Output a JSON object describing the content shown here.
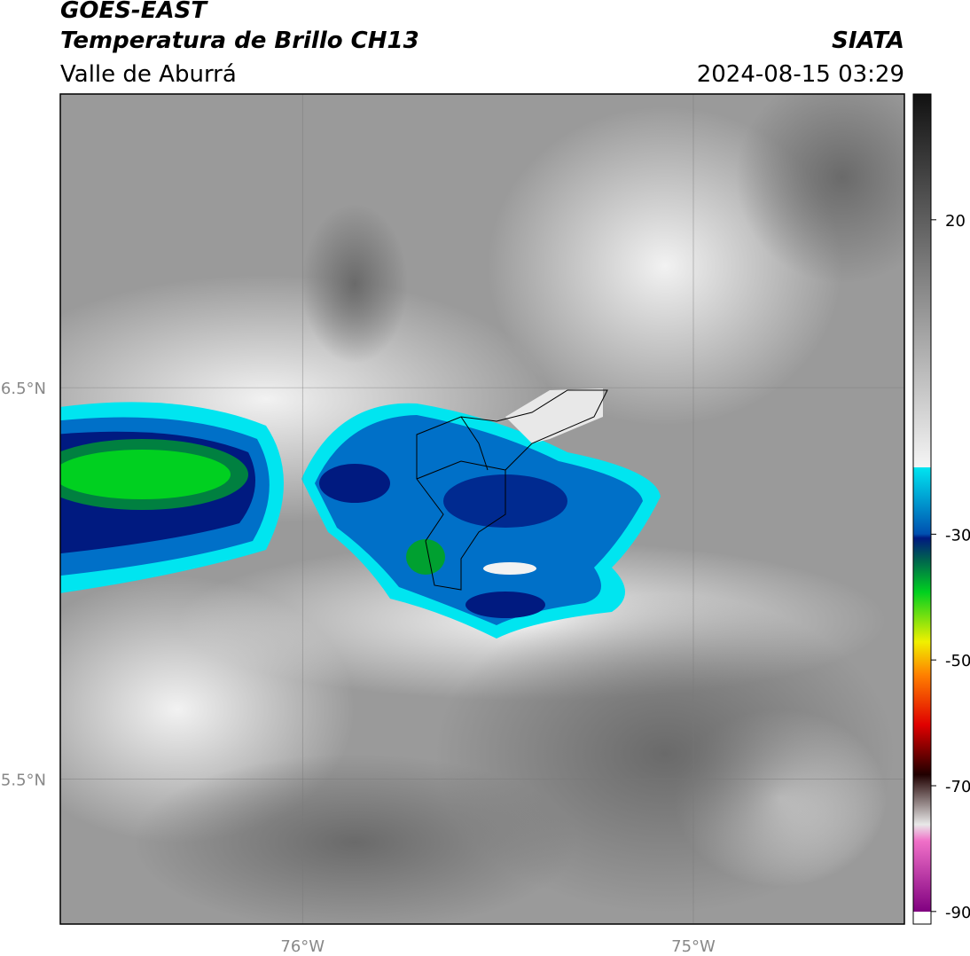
{
  "header": {
    "title": "GOES-EAST",
    "product": "Temperatura de Brillo CH13",
    "region": "Valle de Aburrá",
    "source": "SIATA",
    "datetime": "2024-08-15 03:29"
  },
  "map": {
    "xlim": [
      -76.62,
      -74.46
    ],
    "ylim": [
      5.13,
      7.25
    ],
    "xticks": [
      {
        "value": -76,
        "label": "76°W"
      },
      {
        "value": -75,
        "label": "75°W"
      }
    ],
    "yticks": [
      {
        "value": 6.5,
        "label": "6.5°N"
      },
      {
        "value": 5.5,
        "label": "5.5°N"
      }
    ]
  },
  "colorbar": {
    "lim": [
      -92,
      40
    ],
    "ticks": [
      20,
      -30,
      -50,
      -70,
      -90
    ]
  }
}
